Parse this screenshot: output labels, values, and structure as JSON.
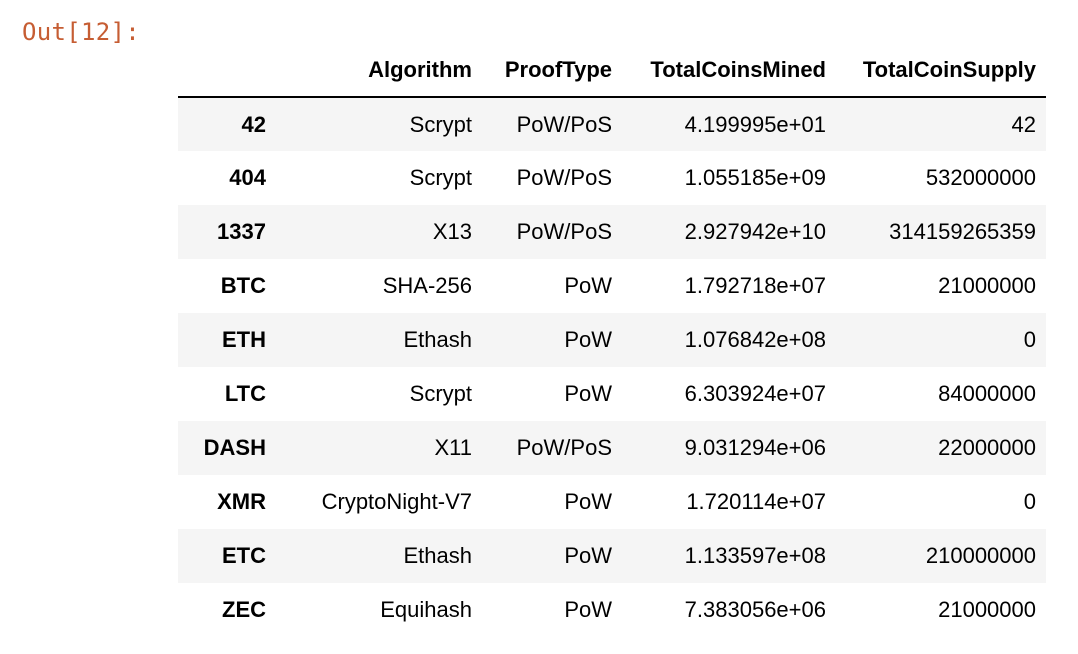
{
  "cell": {
    "prompt": "Out[12]:"
  },
  "table": {
    "columns": [
      "",
      "Algorithm",
      "ProofType",
      "TotalCoinsMined",
      "TotalCoinSupply"
    ],
    "rows": [
      {
        "index": "42",
        "Algorithm": "Scrypt",
        "ProofType": "PoW/PoS",
        "TotalCoinsMined": "4.199995e+01",
        "TotalCoinSupply": "42"
      },
      {
        "index": "404",
        "Algorithm": "Scrypt",
        "ProofType": "PoW/PoS",
        "TotalCoinsMined": "1.055185e+09",
        "TotalCoinSupply": "532000000"
      },
      {
        "index": "1337",
        "Algorithm": "X13",
        "ProofType": "PoW/PoS",
        "TotalCoinsMined": "2.927942e+10",
        "TotalCoinSupply": "314159265359"
      },
      {
        "index": "BTC",
        "Algorithm": "SHA-256",
        "ProofType": "PoW",
        "TotalCoinsMined": "1.792718e+07",
        "TotalCoinSupply": "21000000"
      },
      {
        "index": "ETH",
        "Algorithm": "Ethash",
        "ProofType": "PoW",
        "TotalCoinsMined": "1.076842e+08",
        "TotalCoinSupply": "0"
      },
      {
        "index": "LTC",
        "Algorithm": "Scrypt",
        "ProofType": "PoW",
        "TotalCoinsMined": "6.303924e+07",
        "TotalCoinSupply": "84000000"
      },
      {
        "index": "DASH",
        "Algorithm": "X11",
        "ProofType": "PoW/PoS",
        "TotalCoinsMined": "9.031294e+06",
        "TotalCoinSupply": "22000000"
      },
      {
        "index": "XMR",
        "Algorithm": "CryptoNight-V7",
        "ProofType": "PoW",
        "TotalCoinsMined": "1.720114e+07",
        "TotalCoinSupply": "0"
      },
      {
        "index": "ETC",
        "Algorithm": "Ethash",
        "ProofType": "PoW",
        "TotalCoinsMined": "1.133597e+08",
        "TotalCoinSupply": "210000000"
      },
      {
        "index": "ZEC",
        "Algorithm": "Equihash",
        "ProofType": "PoW",
        "TotalCoinsMined": "7.383056e+06",
        "TotalCoinSupply": "21000000"
      }
    ]
  },
  "colors": {
    "prompt": "#c65d33",
    "row_stripe": "#f5f5f5",
    "header_rule": "#000000"
  }
}
